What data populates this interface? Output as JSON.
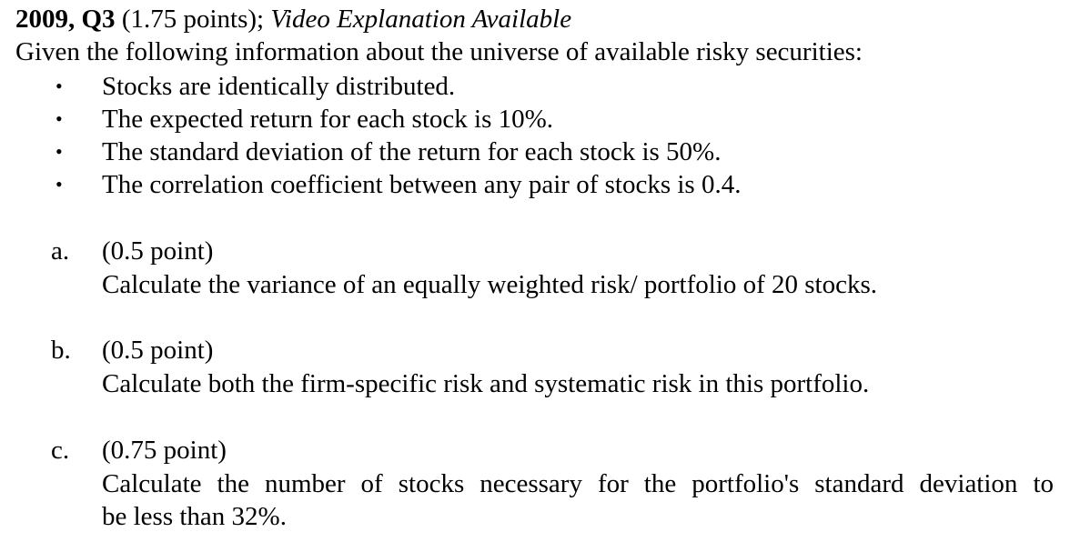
{
  "question": {
    "id": "2009, Q3",
    "points": "(1.75 points);",
    "video_note": "Video Explanation Available"
  },
  "intro": "Given the following information about the universe of available risky securities:",
  "bullets": [
    "Stocks are identically distributed.",
    "The expected return for each stock is 10%.",
    "The standard deviation of the return for each stock is 50%.",
    "The correlation coefficient between any pair of stocks is 0.4."
  ],
  "parts": [
    {
      "letter": "a.",
      "points": "(0.5 point)",
      "lines": [
        "Calculate the variance of an equally weighted risk/ portfolio of 20 stocks."
      ]
    },
    {
      "letter": "b.",
      "points": "(0.5 point)",
      "lines": [
        "Calculate both the firm-specific risk and systematic risk in this portfolio."
      ]
    },
    {
      "letter": "c.",
      "points": "(0.75 point)",
      "lines": [
        "Calculate the number of stocks necessary for the portfolio's standard deviation to",
        "be less than 32%."
      ]
    }
  ],
  "bullet_glyph": "•"
}
